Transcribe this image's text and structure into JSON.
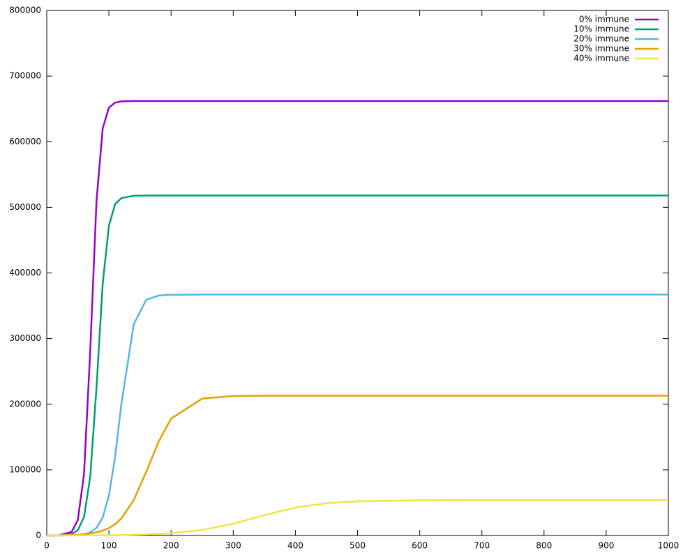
{
  "chart_data": {
    "type": "line",
    "x": [
      0,
      20,
      40,
      50,
      60,
      70,
      80,
      90,
      100,
      110,
      120,
      140,
      160,
      180,
      200,
      250,
      300,
      350,
      400,
      450,
      500,
      600,
      700,
      800,
      900,
      1000
    ],
    "series": [
      {
        "name": "0% immune",
        "color": "#9400d3",
        "values": [
          14,
          271,
          5400,
          23600,
          93900,
          282000,
          509000,
          620000,
          652000,
          659500,
          661500,
          662000,
          662000,
          662000,
          662000,
          662000,
          662000,
          662000,
          662000,
          662000,
          662000,
          662000,
          662000,
          662000,
          662000,
          662000
        ]
      },
      {
        "name": "10% immune",
        "color": "#009e73",
        "values": [
          12,
          163,
          2190,
          7960,
          28000,
          90000,
          225000,
          383000,
          472000,
          505000,
          514000,
          517700,
          518000,
          518000,
          518000,
          518000,
          518000,
          518000,
          518000,
          518000,
          518000,
          518000,
          518000,
          518000,
          518000,
          518000
        ]
      },
      {
        "name": "20% immune",
        "color": "#56b4e9",
        "values": [
          9,
          54,
          327,
          805,
          1970,
          4820,
          11600,
          27300,
          60700,
          120000,
          200000,
          322000,
          359000,
          365600,
          366800,
          367000,
          367000,
          367000,
          367000,
          367000,
          367000,
          367000,
          367000,
          367000,
          367000,
          367000
        ]
      },
      {
        "name": "30% immune",
        "color": "#e69f00",
        "values": [
          133,
          326,
          800,
          1260,
          1950,
          3050,
          4750,
          7380,
          11300,
          17200,
          25800,
          54000,
          96800,
          143000,
          178000,
          208600,
          212500,
          213000,
          213000,
          213000,
          213000,
          213000,
          213000,
          213000,
          213000,
          213000
        ]
      },
      {
        "name": "40% immune",
        "color": "#f0e442",
        "values": [
          66,
          99,
          148,
          180,
          220,
          268,
          327,
          400,
          487,
          595,
          725,
          1070,
          1580,
          2330,
          3400,
          8350,
          17900,
          31000,
          42500,
          49100,
          52100,
          53700,
          53950,
          54000,
          54000,
          54000
        ]
      }
    ],
    "xlim": [
      0,
      1000
    ],
    "xticks": [
      0,
      100,
      200,
      300,
      400,
      500,
      600,
      700,
      800,
      900,
      1000
    ],
    "ylim": [
      0,
      800000
    ],
    "yticks": [
      0,
      100000,
      200000,
      300000,
      400000,
      500000,
      600000,
      700000,
      800000
    ],
    "legend": "top-right"
  }
}
